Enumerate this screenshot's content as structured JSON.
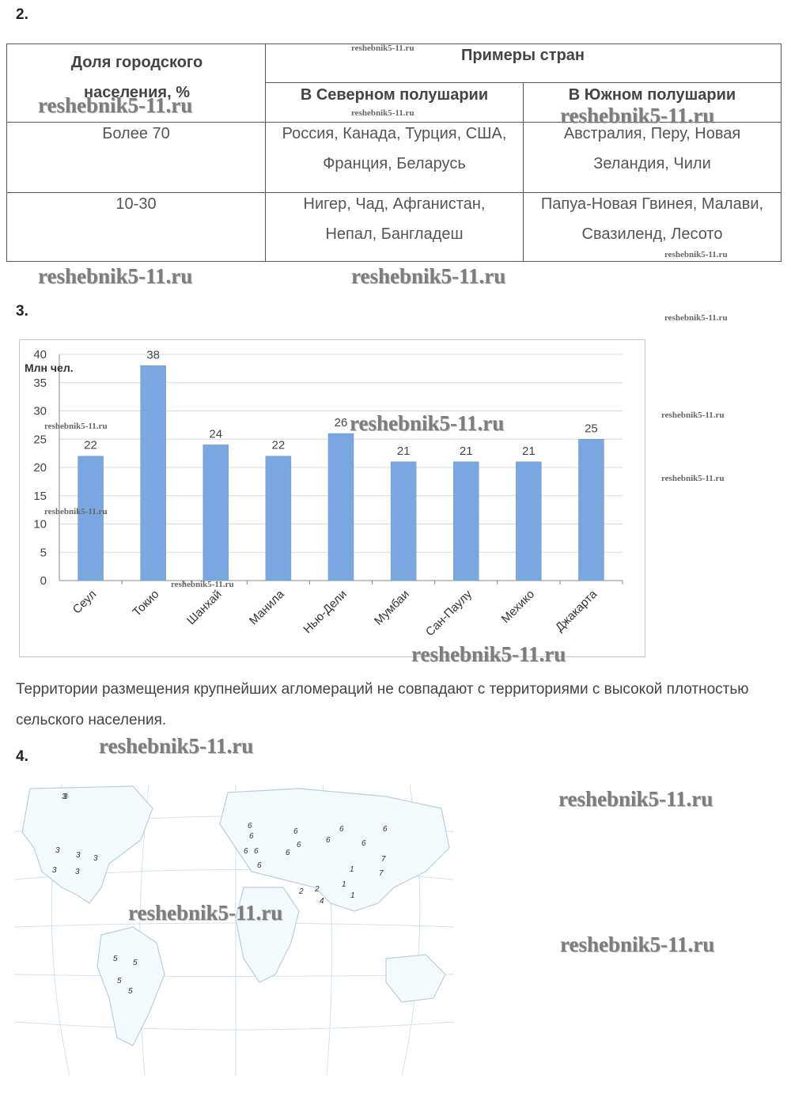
{
  "section2": {
    "number": "2.",
    "header_share": "Доля городского населения, %",
    "header_examples": "Примеры стран",
    "header_north": "В Северном полушарии",
    "header_south": "В Южном полушарии",
    "rows": [
      {
        "share": "Более 70",
        "north": "Россия, Канада, Турция, США, Франция, Беларусь",
        "south": "Австралия, Перу, Новая Зеландия, Чили"
      },
      {
        "share": "10-30",
        "north": "Нигер, Чад, Афганистан, Непал, Бангладеш",
        "south": "Папуа-Новая Гвинея, Малави, Свазиленд, Лесото"
      }
    ]
  },
  "section3": {
    "number": "3.",
    "conclusion": "Территории размещения крупнейших агломераций не совпадают с территориями с высокой плотностью сельского населения."
  },
  "chart_data": {
    "type": "bar",
    "categories": [
      "Сеул",
      "Токио",
      "Шанхай",
      "Манила",
      "Нью-Дели",
      "Мумбаи",
      "Сан-Паулу",
      "Мехико",
      "Джакарта"
    ],
    "values": [
      22,
      38,
      24,
      22,
      26,
      21,
      21,
      21,
      25
    ],
    "data_labels": [
      "22",
      "38",
      "24",
      "22",
      "26",
      "21",
      "21",
      "21",
      "25"
    ],
    "ylabel": "Млн чел.",
    "ylim": [
      0,
      40
    ],
    "yticks": [
      "0",
      "5",
      "10",
      "15",
      "20",
      "25",
      "30",
      "35",
      "40"
    ],
    "bar_color": "#7ba7e0",
    "grid": true
  },
  "section4": {
    "number": "4.",
    "map_labels": [
      "3",
      "3",
      "3",
      "3",
      "3",
      "3",
      "3",
      "6",
      "6",
      "6",
      "6",
      "6",
      "6",
      "6",
      "6",
      "6",
      "6",
      "6",
      "6",
      "7",
      "7",
      "1",
      "1",
      "1",
      "2",
      "2",
      "4",
      "5",
      "5",
      "5",
      "5"
    ]
  },
  "watermarks": {
    "big": "reshebnik5-11.ru",
    "small": "reshebnik5-11.ru"
  }
}
